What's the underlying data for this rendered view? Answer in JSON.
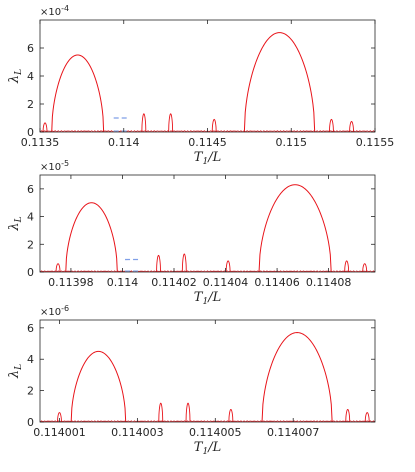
{
  "chart_data": [
    {
      "type": "line",
      "ylabel": "λ_L",
      "xlabel": "T_1/L",
      "y_exponent": "×10^-4",
      "exp_base": "×10",
      "exp_power": "-4",
      "xlim": [
        0.1135,
        0.1155
      ],
      "ylim": [
        0,
        0.0008
      ],
      "xticks": [
        0.1135,
        0.114,
        0.1145,
        0.115,
        0.1155
      ],
      "xtick_labels": [
        "0.1135",
        "0.114",
        "0.1145",
        "0.115",
        "0.1155"
      ],
      "yticks": [
        0,
        0.0002,
        0.0004,
        0.0006
      ],
      "ytick_labels": [
        "0",
        "2",
        "4",
        "6"
      ],
      "lobes": [
        {
          "x_start": 0.11357,
          "x_end": 0.11388,
          "peak": 0.00055
        },
        {
          "x_start": 0.11472,
          "x_end": 0.11514,
          "peak": 0.00071
        }
      ],
      "small_lobes": [
        {
          "x": 0.11353,
          "peak": 6.5e-05
        },
        {
          "x": 0.11412,
          "peak": 0.00013
        },
        {
          "x": 0.11428,
          "peak": 0.00013
        },
        {
          "x": 0.11454,
          "peak": 9e-05
        },
        {
          "x": 0.11524,
          "peak": 9e-05
        },
        {
          "x": 0.11536,
          "peak": 7.5e-05
        }
      ],
      "dashed_segment": {
        "x_start": 0.11394,
        "x_end": 0.11402,
        "y": 0.0001
      }
    },
    {
      "type": "line",
      "ylabel": "λ_L",
      "xlabel": "T_1/L",
      "y_exponent": "×10^-5",
      "exp_base": "×10",
      "exp_power": "-5",
      "xlim": [
        0.113968,
        0.114098
      ],
      "ylim": [
        0,
        7e-05
      ],
      "xticks": [
        0.11398,
        0.114,
        0.11402,
        0.11404,
        0.11406,
        0.11408
      ],
      "xtick_labels": [
        "0.11398",
        "0.114",
        "0.11402",
        "0.11404",
        "0.11406",
        "0.11408"
      ],
      "yticks": [
        0,
        2e-05,
        4e-05,
        6e-05
      ],
      "ytick_labels": [
        "0",
        "2",
        "4",
        "6"
      ],
      "lobes": [
        {
          "x_start": 0.113978,
          "x_end": 0.113998,
          "peak": 5e-05
        },
        {
          "x_start": 0.114053,
          "x_end": 0.114081,
          "peak": 6.3e-05
        }
      ],
      "small_lobes": [
        {
          "x": 0.113975,
          "peak": 6e-06
        },
        {
          "x": 0.114014,
          "peak": 1.2e-05
        },
        {
          "x": 0.114024,
          "peak": 1.3e-05
        },
        {
          "x": 0.114041,
          "peak": 8e-06
        },
        {
          "x": 0.114087,
          "peak": 8e-06
        },
        {
          "x": 0.114094,
          "peak": 6e-06
        }
      ],
      "dashed_segment": {
        "x_start": 0.114001,
        "x_end": 0.114007,
        "y": 9e-06
      }
    },
    {
      "type": "line",
      "ylabel": "λ_L",
      "xlabel": "T_1/L",
      "y_exponent": "×10^-6",
      "exp_base": "×10",
      "exp_power": "-6",
      "xlim": [
        0.1140005,
        0.1140091
      ],
      "ylim": [
        0,
        6.5e-06
      ],
      "xticks": [
        0.114001,
        0.114003,
        0.114005,
        0.114007
      ],
      "xtick_labels": [
        "0.114001",
        "0.114003",
        "0.114005",
        "0.114007"
      ],
      "yticks": [
        0,
        2e-06,
        4e-06,
        6e-06
      ],
      "ytick_labels": [
        "0",
        "2",
        "4",
        "6"
      ],
      "lobes": [
        {
          "x_start": 0.1140013,
          "x_end": 0.1140027,
          "peak": 4.5e-06
        },
        {
          "x_start": 0.1140062,
          "x_end": 0.114008,
          "peak": 5.7e-06
        }
      ],
      "small_lobes": [
        {
          "x": 0.114001,
          "peak": 6e-07
        },
        {
          "x": 0.1140036,
          "peak": 1.2e-06
        },
        {
          "x": 0.1140043,
          "peak": 1.2e-06
        },
        {
          "x": 0.1140054,
          "peak": 8e-07
        },
        {
          "x": 0.1140084,
          "peak": 8e-07
        },
        {
          "x": 0.1140089,
          "peak": 6e-07
        }
      ]
    }
  ],
  "colors": {
    "curve": "#e8141a",
    "dashed": "#7f9fe8",
    "axis": "#262626",
    "frame": "#262626"
  }
}
